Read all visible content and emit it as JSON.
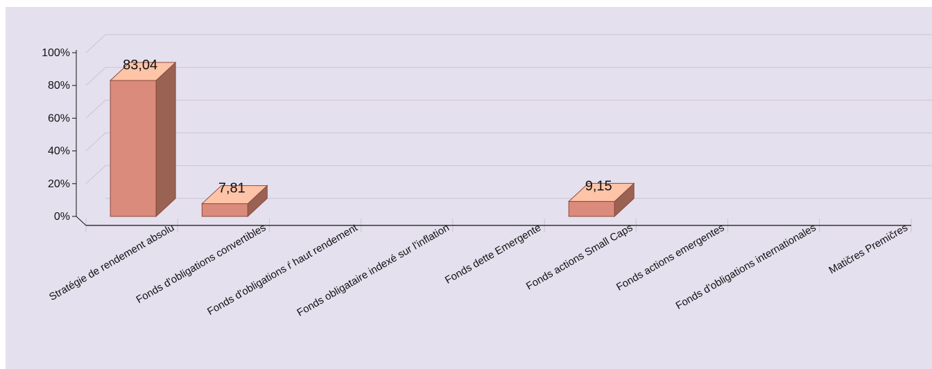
{
  "chart_data": {
    "type": "bar",
    "categories": [
      "Stratégie de rendement absolu",
      "Fonds d'obligations convertibles",
      "Fonds d'obligations ŕ haut rendement",
      "Fonds obligataire indexé sur l'inflation",
      "Fonds dette Emergente",
      "Fonds actions Small Caps",
      "Fonds actions emergentes",
      "Fonds d'obligations internationales",
      "Matičres Premičres"
    ],
    "values": [
      83.04,
      7.81,
      null,
      null,
      null,
      9.15,
      null,
      null,
      null
    ],
    "value_labels": [
      "83,04",
      "7,81",
      "",
      "",
      "",
      "9,15",
      "",
      "",
      ""
    ],
    "ylim": [
      0,
      100
    ],
    "yticks": [
      "0%",
      "20%",
      "40%",
      "60%",
      "80%",
      "100%"
    ],
    "title": "",
    "xlabel": "",
    "ylabel": "",
    "grid": true,
    "colors": {
      "background": "#E5E0EE",
      "bar_front": "#DB8B7B",
      "bar_side": "#9A6253",
      "bar_top": "#FEC4A8",
      "bar_edge": "#8A4A3E",
      "grid": "#C9C4D1",
      "axis": "#111111"
    }
  }
}
